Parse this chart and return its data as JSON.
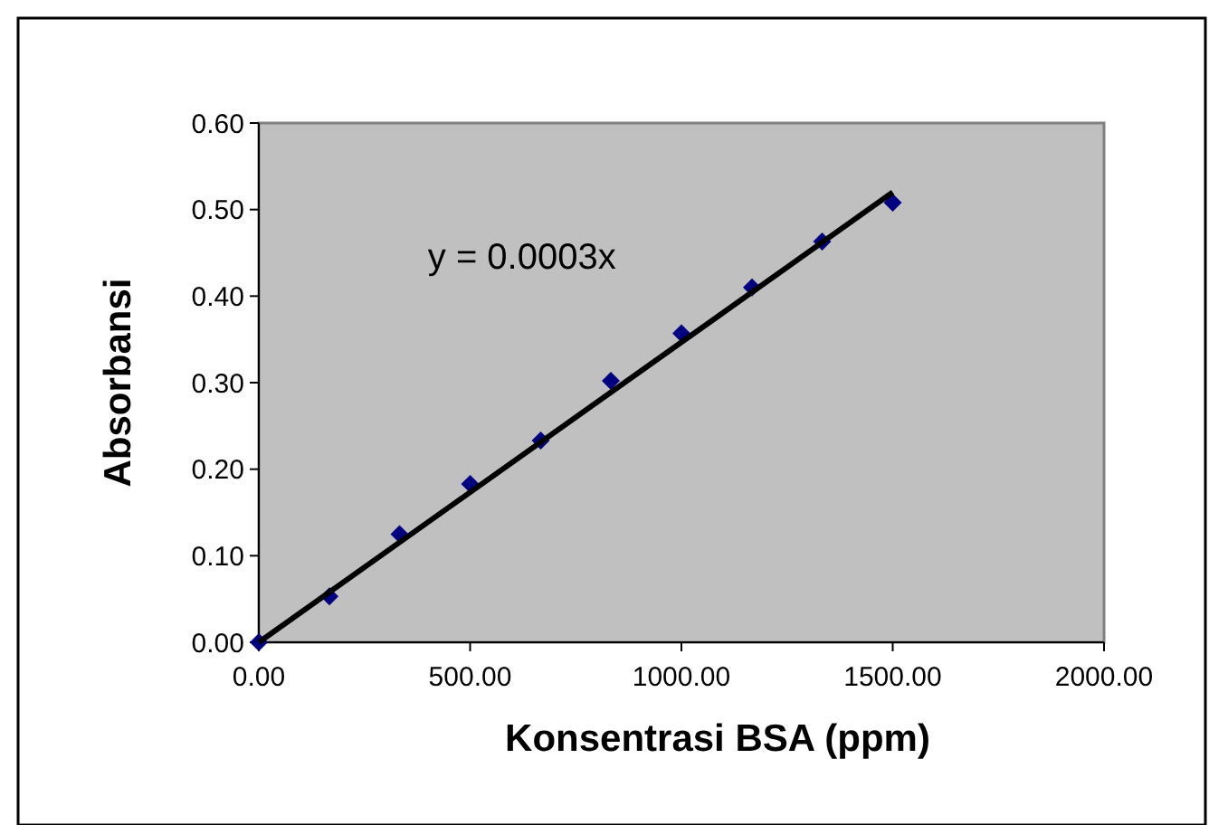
{
  "chart_data": {
    "type": "scatter",
    "xlabel": "Konsentrasi BSA (ppm)",
    "ylabel": "Absorbansi",
    "x": [
      0,
      167,
      333,
      500,
      667,
      833,
      1000,
      1167,
      1333,
      1500
    ],
    "series": [
      {
        "color": "#000080",
        "marker": "diamond",
        "values": [
          0,
          0.053,
          0.125,
          0.183,
          0.233,
          0.302,
          0.357,
          0.41,
          0.463,
          0.508
        ]
      },
      {
        "type": "line",
        "color": "#000000",
        "x": [
          0,
          1500
        ],
        "values": [
          0,
          0.52
        ]
      }
    ],
    "xlim": [
      0,
      2000
    ],
    "xticks": [
      {
        "value": 0,
        "label": "0.00"
      },
      {
        "value": 500,
        "label": "500.00"
      },
      {
        "value": 1000,
        "label": "1000.00"
      },
      {
        "value": 1500,
        "label": "1500.00"
      },
      {
        "value": 2000,
        "label": "2000.00"
      }
    ],
    "ylim": [
      0,
      0.6
    ],
    "yticks": [
      {
        "value": 0,
        "label": "0.00"
      },
      {
        "value": 0.1,
        "label": "0.10"
      },
      {
        "value": 0.2,
        "label": "0.20"
      },
      {
        "value": 0.3,
        "label": "0.30"
      },
      {
        "value": 0.4,
        "label": "0.40"
      },
      {
        "value": 0.5,
        "label": "0.50"
      },
      {
        "value": 0.6,
        "label": "0.60"
      }
    ],
    "grid": false,
    "annotations": [
      "y = 0.0003x"
    ]
  }
}
